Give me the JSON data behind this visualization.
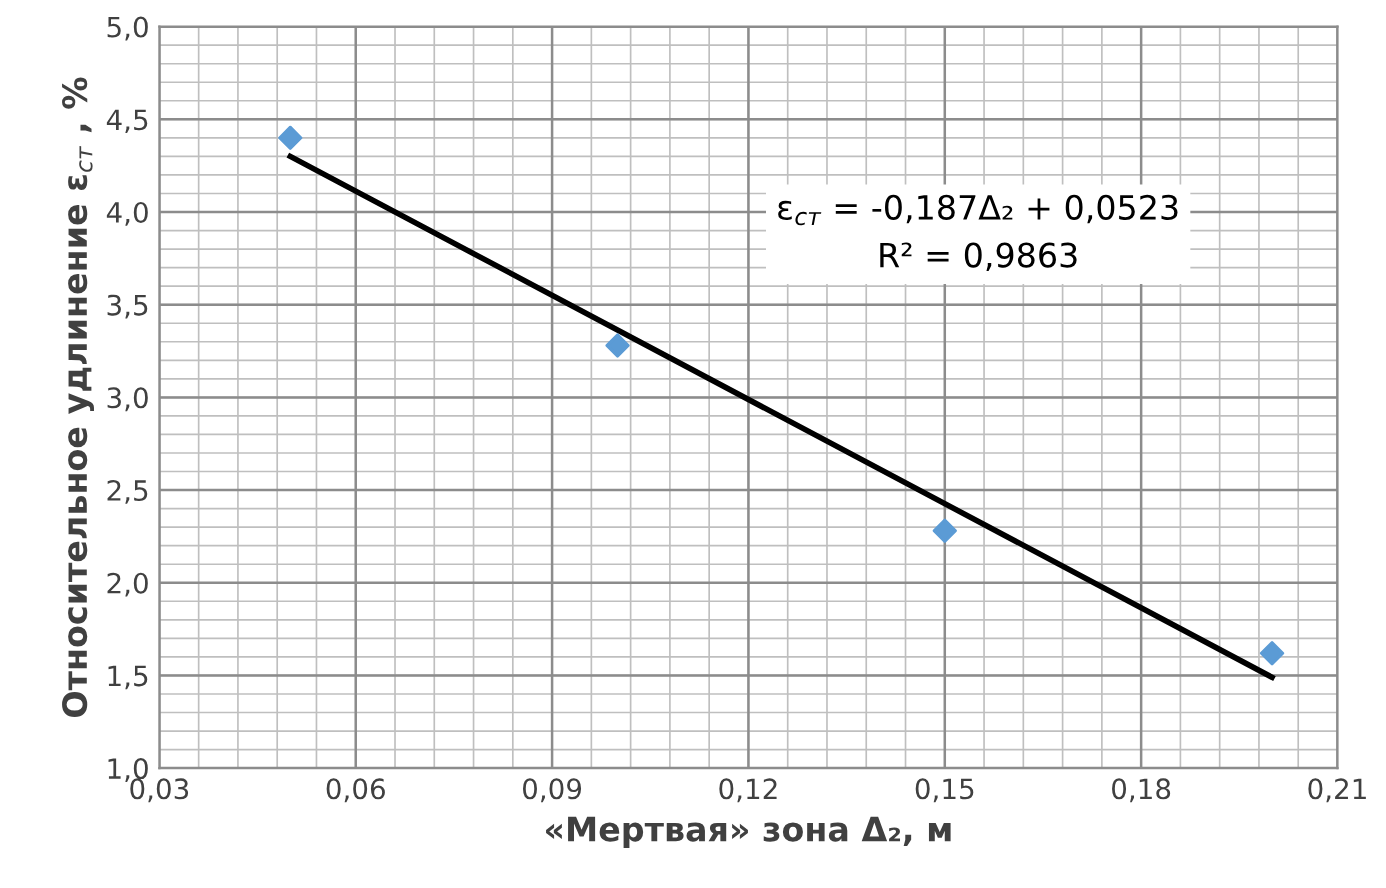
{
  "chart_data": {
    "type": "scatter",
    "xlabel": "«Мертвая» зона Δ₂, м",
    "ylabel": "Относительное удлинение ε$_{ст}$ , %",
    "annotations": [
      "ε$_{ст}$ = -0,187Δ₂ + 0,0523\nR² = 0,9863"
    ],
    "series": [
      {
        "color": "#5b9bd5",
        "marker": "diamond",
        "x": [
          0.05,
          0.1,
          0.15,
          0.2
        ],
        "values": [
          4.4,
          3.28,
          2.28,
          1.62
        ]
      },
      {
        "type": "line",
        "color": "#000000",
        "marker": "none",
        "line_style": "solid",
        "x": [
          0.05,
          0.2
        ],
        "values": [
          4.3,
          1.49
        ]
      }
    ],
    "xlim": [
      0.03,
      0.21
    ],
    "ylim": [
      1.0,
      5.0
    ],
    "xticks": [
      {
        "value": 0.03,
        "label": "0,03"
      },
      {
        "value": 0.06,
        "label": "0,06"
      },
      {
        "value": 0.09,
        "label": "0,09"
      },
      {
        "value": 0.12,
        "label": "0,12"
      },
      {
        "value": 0.15,
        "label": "0,15"
      },
      {
        "value": 0.18,
        "label": "0,18"
      },
      {
        "value": 0.21,
        "label": "0,21"
      }
    ],
    "yticks": [
      {
        "value": 1.0,
        "label": "1,0"
      },
      {
        "value": 1.5,
        "label": "1,5"
      },
      {
        "value": 2.0,
        "label": "2,0"
      },
      {
        "value": 2.5,
        "label": "2,5"
      },
      {
        "value": 3.0,
        "label": "3,0"
      },
      {
        "value": 3.5,
        "label": "3,5"
      },
      {
        "value": 4.0,
        "label": "4,0"
      },
      {
        "value": 4.5,
        "label": "4,5"
      },
      {
        "value": 5.0,
        "label": "5,0"
      }
    ],
    "grid": true,
    "legend": false
  }
}
